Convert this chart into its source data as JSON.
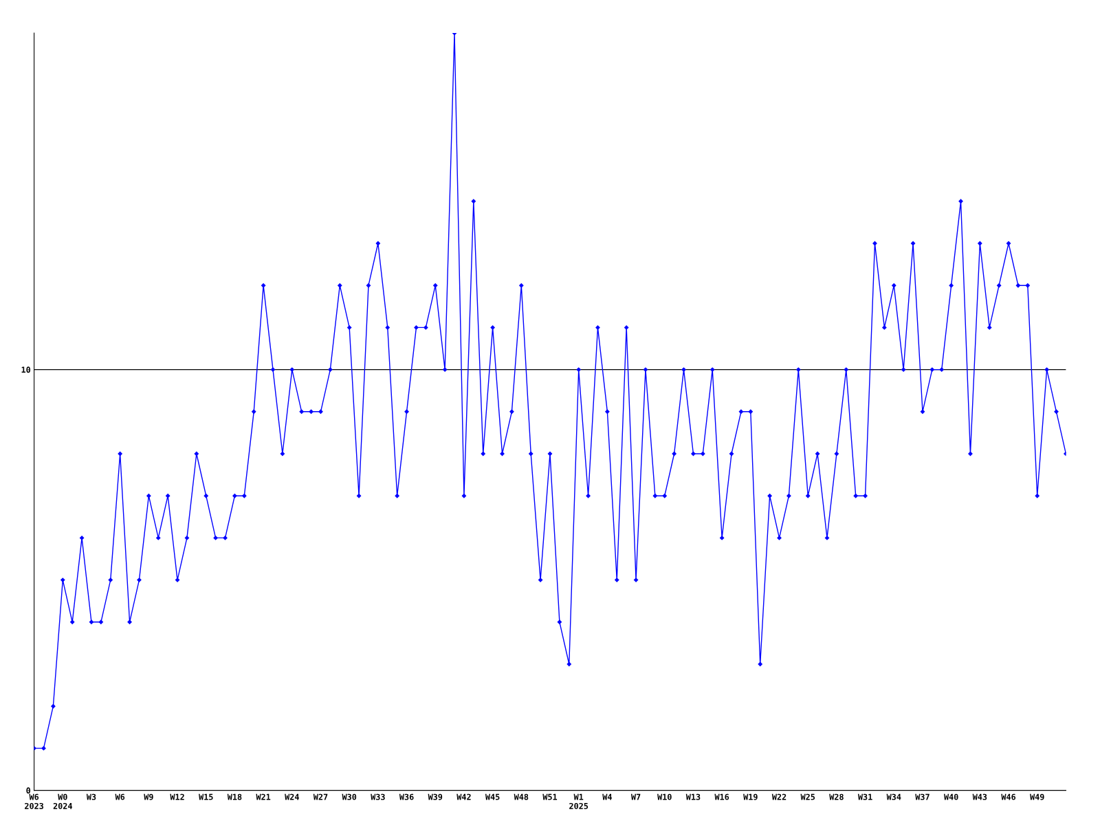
{
  "chart_data": {
    "type": "line",
    "color": "#0000ff",
    "marker": "diamond",
    "grid": "y",
    "ylim": [
      0,
      18
    ],
    "yticks": [
      0,
      10
    ],
    "categories": [
      "W6\n2023",
      null,
      null,
      "W0\n2024",
      null,
      null,
      "W3",
      null,
      null,
      "W6",
      null,
      null,
      "W9",
      null,
      null,
      "W12",
      null,
      null,
      "W15",
      null,
      null,
      "W18",
      null,
      null,
      "W21",
      null,
      null,
      "W24",
      null,
      null,
      "W27",
      null,
      null,
      "W30",
      null,
      null,
      "W33",
      null,
      null,
      "W36",
      null,
      null,
      "W39",
      null,
      null,
      "W42",
      null,
      null,
      "W45",
      null,
      null,
      "W48",
      null,
      null,
      "W51",
      null,
      null,
      "W1\n2025",
      null,
      null,
      "W4",
      null,
      null,
      "W7",
      null,
      null,
      "W10",
      null,
      null,
      "W13",
      null,
      null,
      "W16",
      null,
      null,
      "W19",
      null,
      null,
      "W22",
      null,
      null,
      "W25",
      null,
      null,
      "W28",
      null,
      null,
      "W31",
      null,
      null,
      "W34",
      null,
      null,
      "W37",
      null,
      null,
      "W40",
      null,
      null,
      "W43",
      null,
      null,
      "W46",
      null,
      null,
      "W49",
      null,
      null,
      null
    ],
    "values": [
      1,
      1,
      2,
      5,
      4,
      6,
      4,
      4,
      5,
      8,
      4,
      5,
      7,
      6,
      7,
      5,
      6,
      8,
      7,
      6,
      6,
      7,
      7,
      9,
      12,
      10,
      8,
      10,
      9,
      9,
      9,
      10,
      12,
      11,
      7,
      12,
      13,
      11,
      7,
      9,
      11,
      11,
      12,
      10,
      18,
      7,
      14,
      8,
      11,
      8,
      9,
      12,
      8,
      5,
      8,
      4,
      3,
      10,
      7,
      11,
      9,
      5,
      11,
      5,
      10,
      7,
      7,
      8,
      10,
      8,
      8,
      10,
      6,
      8,
      9,
      9,
      3,
      7,
      6,
      7,
      10,
      7,
      8,
      6,
      8,
      10,
      7,
      7,
      13,
      11,
      12,
      10,
      13,
      9,
      10,
      10,
      12,
      14,
      8,
      13,
      11,
      12,
      13,
      12,
      12,
      7,
      10,
      9,
      8
    ]
  }
}
